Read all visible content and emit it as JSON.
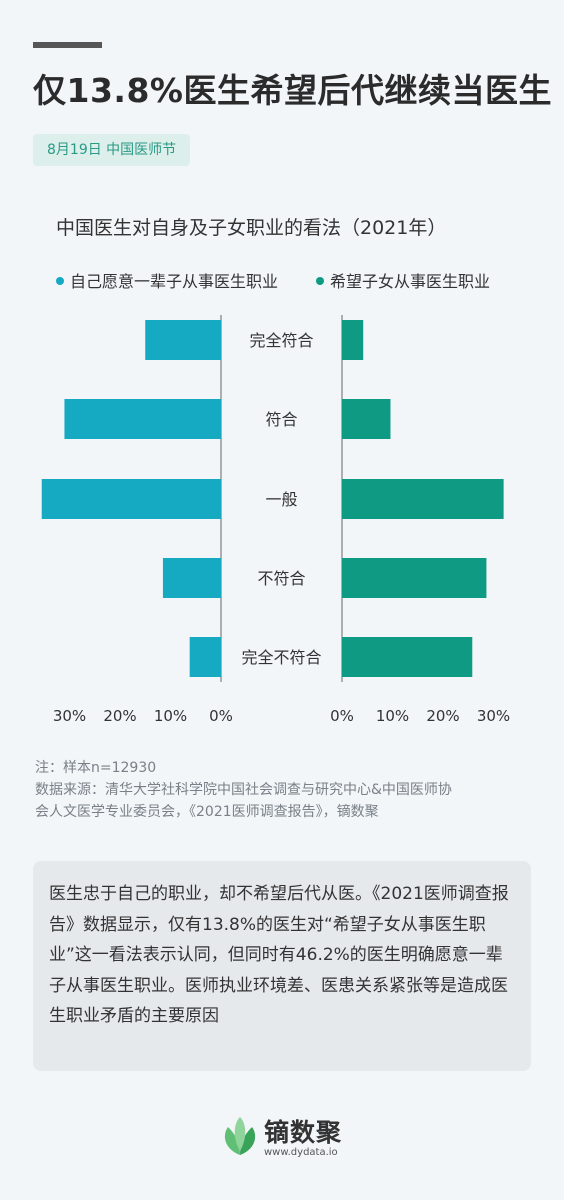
{
  "header": {
    "title": "仅13.8%医生希望后代继续当医生",
    "tag": "8月19日 中国医师节"
  },
  "chart_data": {
    "type": "bar",
    "title": "中国医生对自身及子女职业的看法（2021年）",
    "categories": [
      "完全符合",
      "符合",
      "一般",
      "不符合",
      "完全不符合"
    ],
    "series": [
      {
        "name": "自己愿意一辈子从事医生职业",
        "color": "#15a9c2",
        "values": [
          15,
          31,
          35.5,
          11.5,
          6.2
        ]
      },
      {
        "name": "希望子女从事医生职业",
        "color": "#0e9a83",
        "values": [
          4.2,
          9.6,
          32,
          28.6,
          25.8
        ]
      }
    ],
    "left_ticks": [
      "30%",
      "20%",
      "10%",
      "0%"
    ],
    "right_ticks": [
      "0%",
      "10%",
      "20%",
      "30%"
    ],
    "xlim": [
      0,
      35
    ]
  },
  "notes": {
    "sample": "注：样本n=12930",
    "source_line1": "数据来源：清华大学社科学院中国社会调查与研究中心&中国医师协",
    "source_line2": "会人文医学专业委员会，《2021医师调查报告》，镝数聚"
  },
  "summary": "医生忠于自己的职业，却不希望后代从医。《2021医师调查报告》数据显示，仅有13.8%的医生对“希望子女从事医生职业”这一看法表示认同，但同时有46.2%的医生明确愿意一辈子从事医生职业。医师执业环境差、医患关系紧张等是造成医生职业矛盾的主要原因",
  "logo": {
    "name": "镝数聚",
    "url": "www.dydata.io",
    "icon": "leaf-icon"
  }
}
